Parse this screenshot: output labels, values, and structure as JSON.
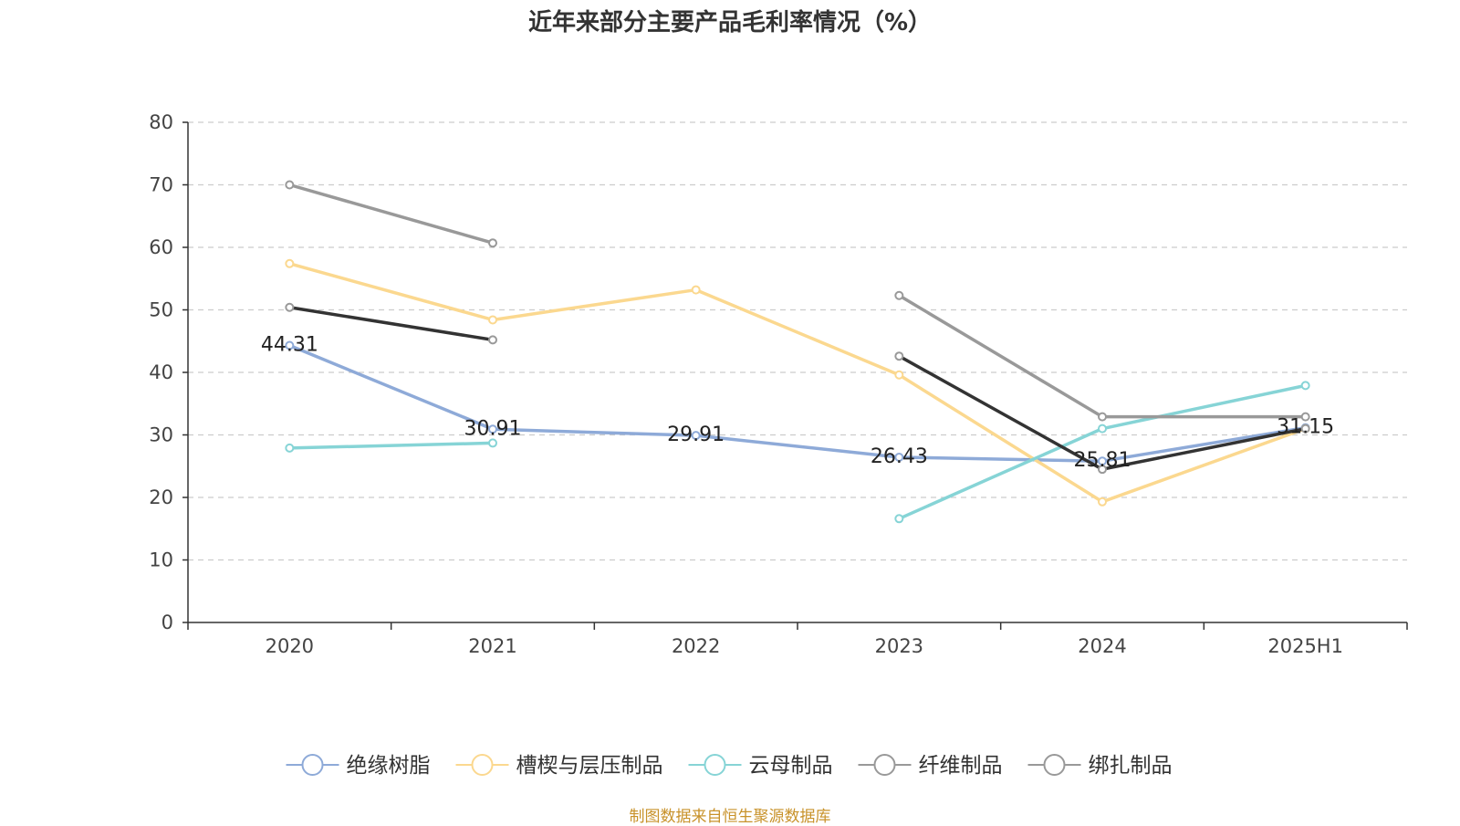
{
  "chart_data": {
    "type": "line",
    "title": "近年来部分主要产品毛利率情况（%）",
    "categories": [
      "2020",
      "2021",
      "2022",
      "2023",
      "2024",
      "2025H1"
    ],
    "ylim": [
      0,
      80
    ],
    "yticks": [
      0,
      10,
      20,
      30,
      40,
      50,
      60,
      70,
      80
    ],
    "grid": true,
    "legend_position": "bottom",
    "series": [
      {
        "name": "绝缘树脂",
        "color": "#8eaad8",
        "values": [
          44.31,
          30.91,
          29.91,
          26.43,
          25.81,
          31.15
        ],
        "labels": [
          "44.31",
          "30.91",
          "29.91",
          "26.43",
          "25.81",
          "31.15"
        ]
      },
      {
        "name": "槽楔与层压制品",
        "color": "#fbd88f",
        "values": [
          57.4,
          48.4,
          53.2,
          39.6,
          19.3,
          31.0
        ]
      },
      {
        "name": "云母制品",
        "color": "#86d4d6",
        "values": [
          27.9,
          28.7,
          null,
          16.6,
          31.0,
          37.9
        ]
      },
      {
        "name": "纤维制品",
        "color": "#999999",
        "values": [
          70.0,
          60.7,
          null,
          52.3,
          32.9,
          32.9
        ]
      },
      {
        "name": "绑扎制品",
        "color": "#333333",
        "legend_color": "#999999",
        "values": [
          50.4,
          45.2,
          null,
          42.6,
          24.5,
          31.0
        ]
      }
    ]
  },
  "footer": {
    "source": "制图数据来自恒生聚源数据库"
  }
}
